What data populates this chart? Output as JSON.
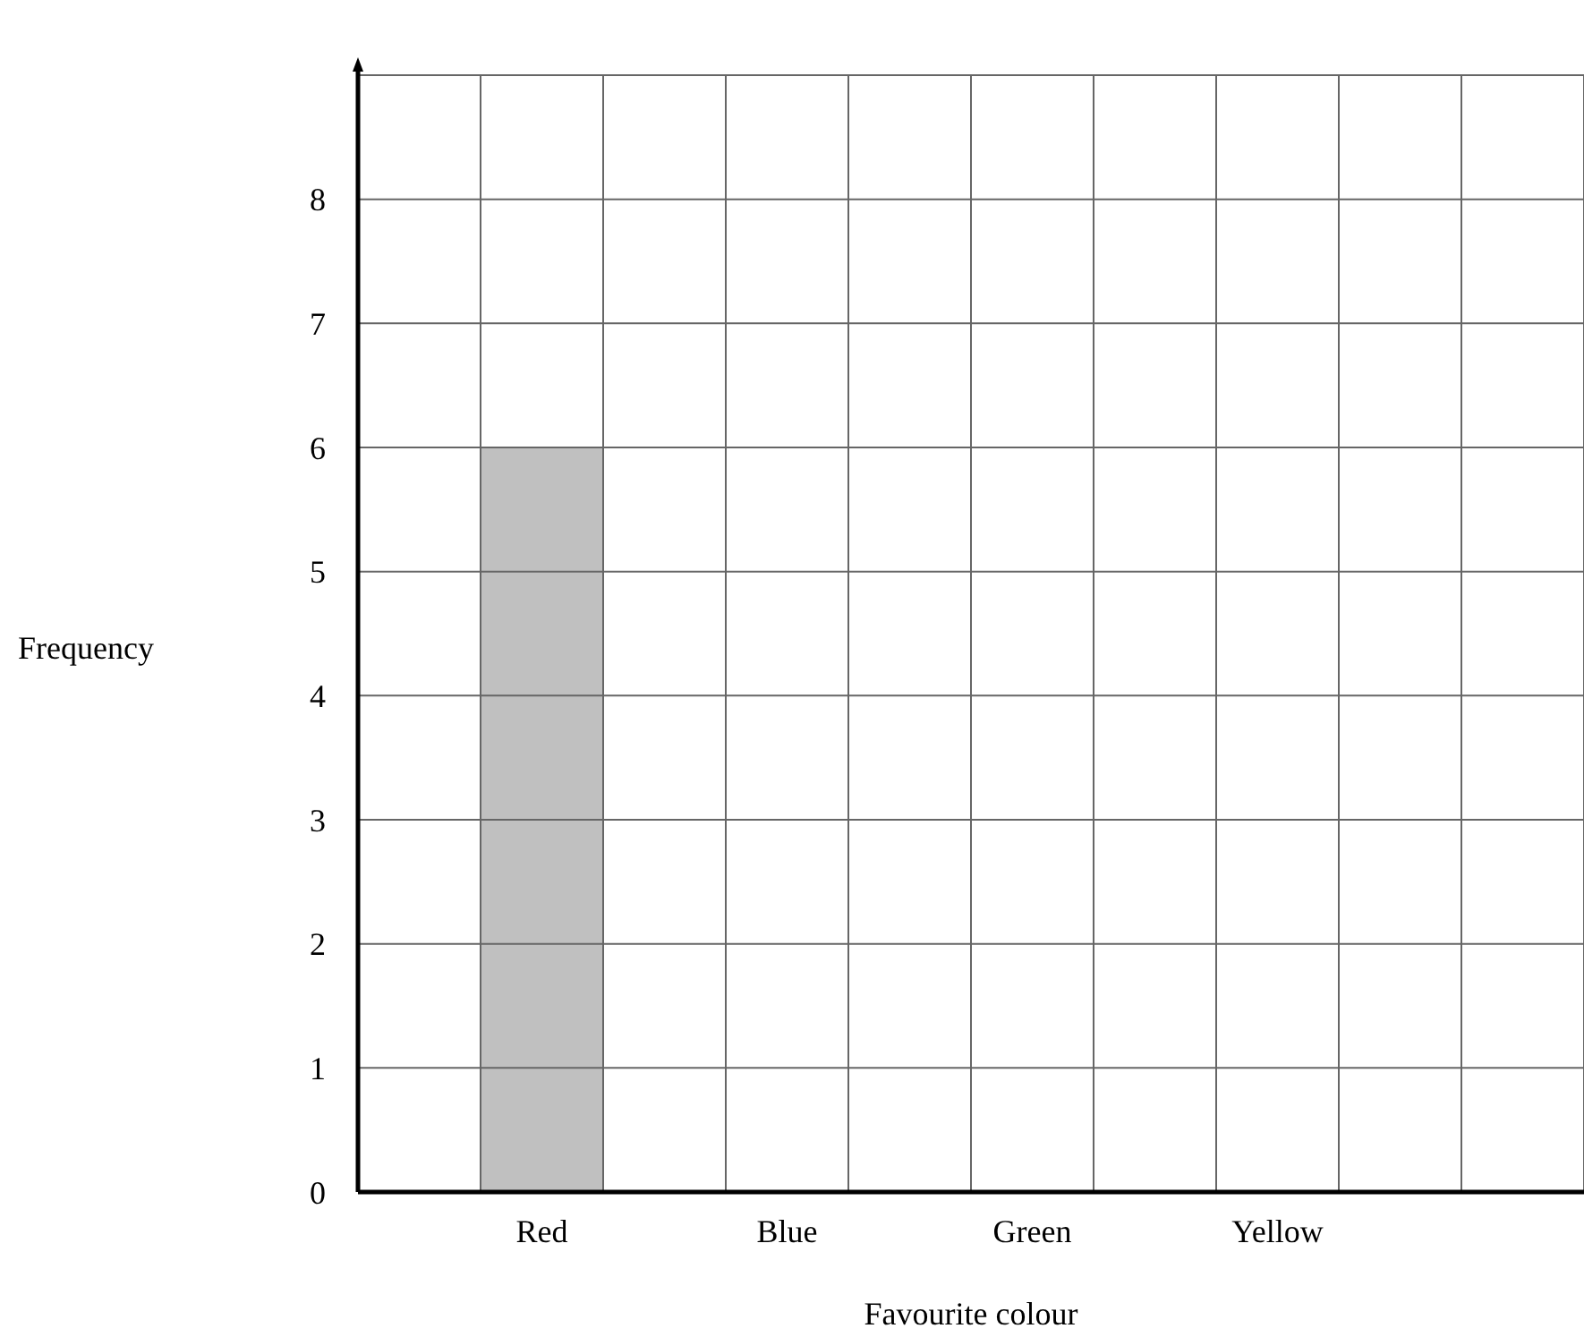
{
  "chart_data": {
    "type": "bar",
    "xlabel": "Favourite colour",
    "ylabel": "Frequency",
    "categories": [
      null,
      "Red",
      null,
      "Blue",
      null,
      "Green",
      null,
      "Yellow",
      null,
      null
    ],
    "values": [
      null,
      6,
      null,
      null,
      null,
      null,
      null,
      null,
      null,
      null
    ],
    "color": "#c0c0c0",
    "ylim": [
      0,
      9
    ],
    "yticks": [
      0,
      1,
      2,
      3,
      4,
      5,
      6,
      7,
      8,
      {
        "value": 9,
        "label": null
      }
    ],
    "grid": true
  }
}
